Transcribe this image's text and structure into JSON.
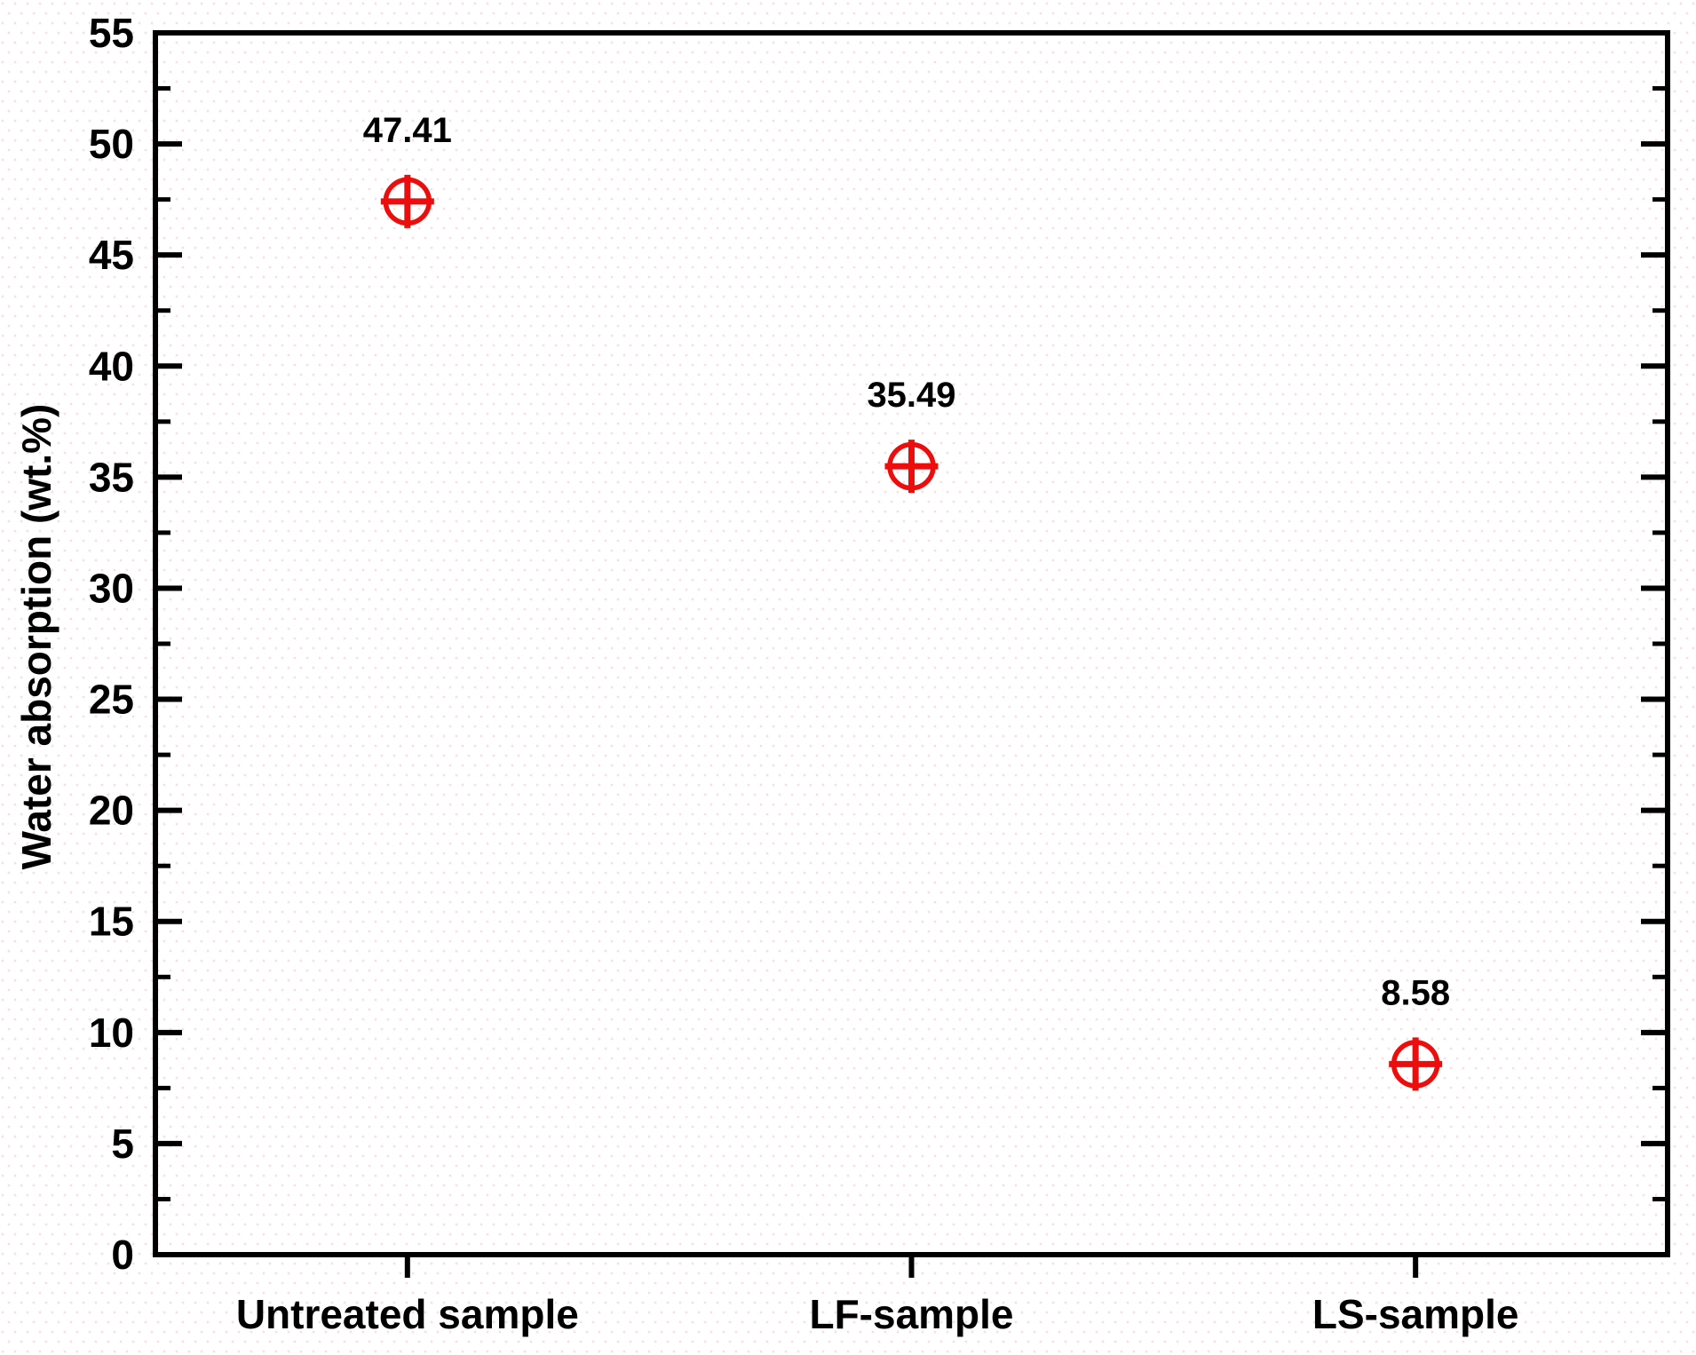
{
  "chart_data": {
    "type": "scatter",
    "title": "",
    "xlabel": "",
    "ylabel": "Water absorption (wt.%)",
    "categories": [
      "Untreated sample",
      "LF-sample",
      "LS-sample"
    ],
    "values": [
      47.41,
      35.49,
      8.58
    ],
    "point_labels": [
      "47.41",
      "35.49",
      "8.58"
    ],
    "ylim": [
      0,
      55
    ],
    "y_major_step": 5,
    "y_minor_step": 2.5,
    "y_ticks": [
      "0",
      "5",
      "10",
      "15",
      "20",
      "25",
      "30",
      "35",
      "40",
      "45",
      "50",
      "55"
    ],
    "grid": "off",
    "legend": "none",
    "marker": "circle-plus",
    "marker_color": "#ee0d0d",
    "axis_color": "#000000",
    "text_color": "#000000"
  }
}
